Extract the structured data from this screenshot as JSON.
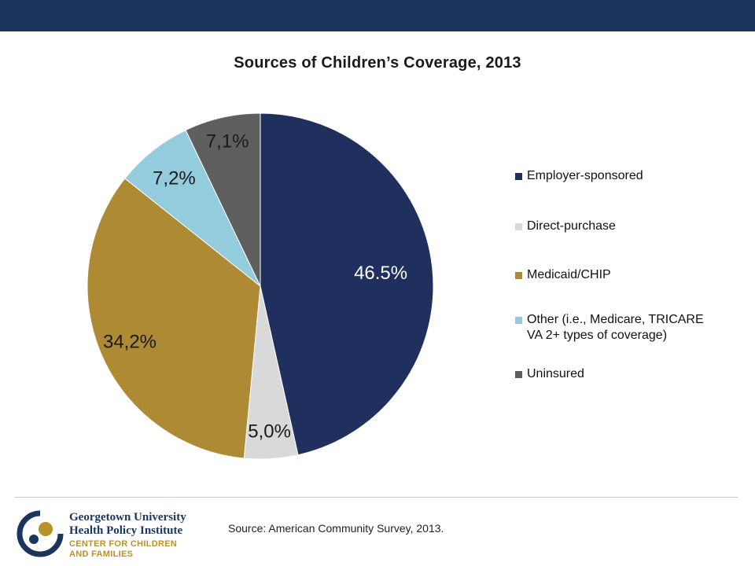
{
  "chart_data": {
    "type": "pie",
    "title": "Sources of Children’s Coverage, 2013",
    "slices": [
      {
        "name": "Employer-sponsored",
        "value": 46.5,
        "label": "46.5%",
        "color": "#1f2f5e",
        "label_color": "#ffffff"
      },
      {
        "name": "Direct-purchase",
        "value": 5.0,
        "label": "5,0%",
        "color": "#d9d9d9",
        "label_color": "#1a1a1a"
      },
      {
        "name": "Medicaid/CHIP",
        "value": 34.2,
        "label": "34,2%",
        "color": "#ad8a33",
        "label_color": "#1a1a1a"
      },
      {
        "name": "Other (i.e., Medicare, TRICARE VA 2+ types of coverage)",
        "value": 7.2,
        "label": "7,2%",
        "color": "#93cddd",
        "label_color": "#1a1a1a"
      },
      {
        "name": "Uninsured",
        "value": 7.1,
        "label": "7,1%",
        "color": "#5f5f5f",
        "label_color": "#1a1a1a"
      }
    ],
    "legend_position": "right"
  },
  "footer": {
    "source": "Source: American Community Survey, 2013.",
    "logo": {
      "line1": "Georgetown University",
      "line2": "Health Policy Institute",
      "line3": "CENTER FOR CHILDREN",
      "line4": "AND FAMILIES"
    }
  },
  "colors": {
    "header_bar": "#1b355d",
    "brand_gold": "#b8922a"
  }
}
